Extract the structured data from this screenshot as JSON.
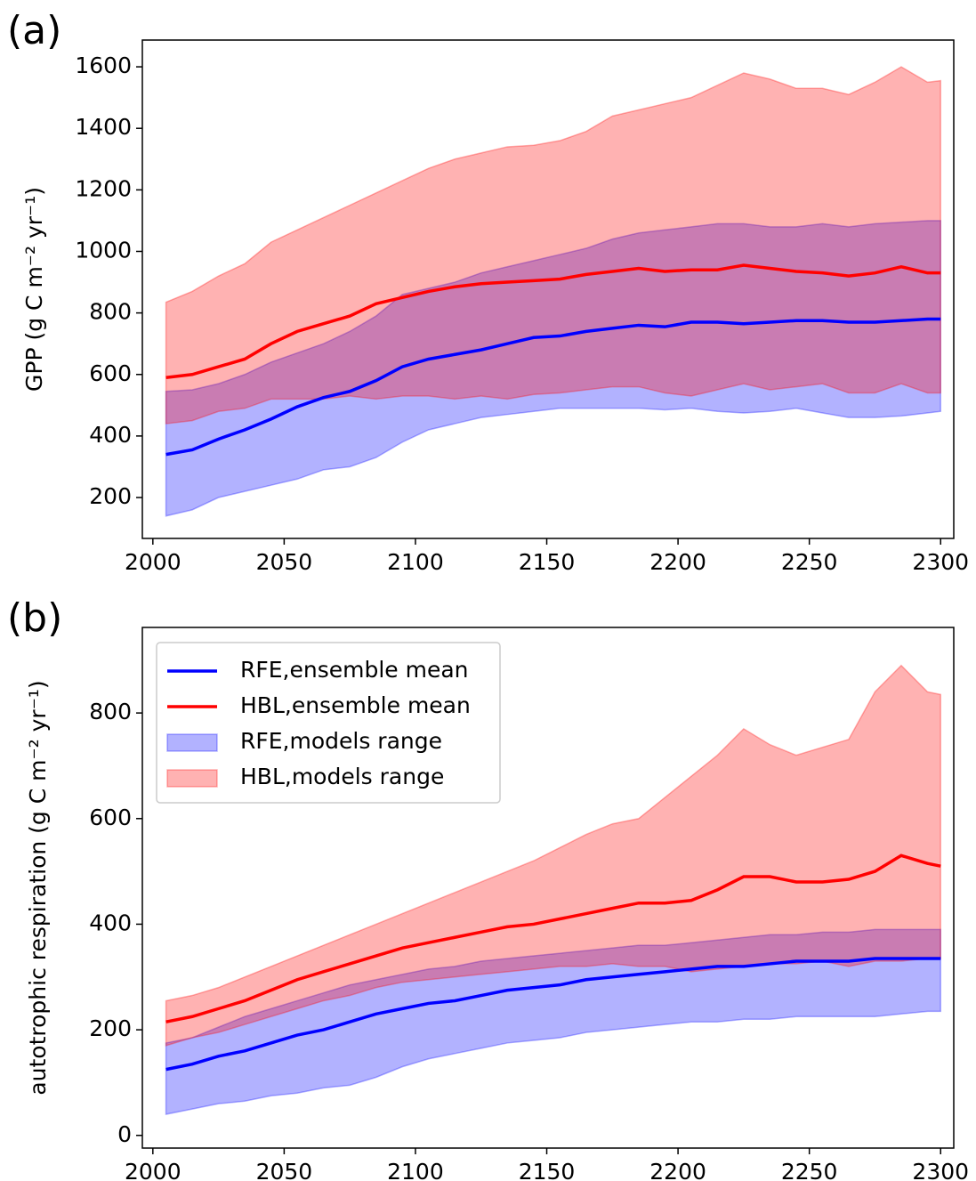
{
  "chart_data": [
    {
      "type": "line",
      "label": "(a)",
      "ylabel": "GPP (g C m⁻² yr⁻¹)",
      "x": [
        2005,
        2015,
        2025,
        2035,
        2045,
        2055,
        2065,
        2075,
        2085,
        2095,
        2105,
        2115,
        2125,
        2135,
        2145,
        2155,
        2165,
        2175,
        2185,
        2195,
        2205,
        2215,
        2225,
        2235,
        2245,
        2255,
        2265,
        2275,
        2285,
        2295,
        2300
      ],
      "xlim": [
        1996,
        2305
      ],
      "xticks": [
        2000,
        2050,
        2100,
        2150,
        2200,
        2250,
        2300
      ],
      "ylim": [
        67,
        1687
      ],
      "yticks": [
        200,
        400,
        600,
        800,
        1000,
        1200,
        1400,
        1600
      ],
      "series": [
        {
          "color": "#0000ff",
          "values": [
            340,
            355,
            390,
            420,
            455,
            495,
            525,
            545,
            580,
            625,
            650,
            665,
            680,
            700,
            720,
            725,
            740,
            750,
            760,
            755,
            770,
            770,
            765,
            770,
            775,
            775,
            770,
            770,
            775,
            780,
            780
          ]
        },
        {
          "color": "#ff0000",
          "values": [
            590,
            600,
            625,
            650,
            700,
            740,
            765,
            790,
            830,
            850,
            870,
            885,
            895,
            900,
            905,
            910,
            925,
            935,
            945,
            935,
            940,
            940,
            955,
            945,
            935,
            930,
            920,
            930,
            950,
            930,
            930
          ]
        },
        {
          "color": "#0000ff",
          "lower": [
            140,
            160,
            200,
            220,
            240,
            260,
            290,
            300,
            330,
            380,
            420,
            440,
            460,
            470,
            480,
            490,
            490,
            490,
            490,
            485,
            490,
            480,
            475,
            480,
            490,
            475,
            460,
            460,
            465,
            475,
            480
          ],
          "upper": [
            545,
            550,
            570,
            600,
            640,
            670,
            700,
            740,
            790,
            860,
            880,
            900,
            930,
            950,
            970,
            990,
            1010,
            1040,
            1060,
            1070,
            1080,
            1090,
            1090,
            1080,
            1080,
            1090,
            1080,
            1090,
            1095,
            1100,
            1100
          ]
        },
        {
          "color": "#ff0000",
          "lower": [
            440,
            450,
            480,
            490,
            520,
            520,
            520,
            530,
            520,
            530,
            530,
            520,
            530,
            520,
            535,
            540,
            550,
            560,
            560,
            540,
            530,
            550,
            570,
            550,
            560,
            570,
            540,
            540,
            570,
            540,
            540
          ],
          "upper": [
            835,
            870,
            920,
            960,
            1030,
            1070,
            1110,
            1150,
            1190,
            1230,
            1270,
            1300,
            1320,
            1340,
            1345,
            1360,
            1390,
            1440,
            1460,
            1480,
            1500,
            1540,
            1580,
            1560,
            1530,
            1530,
            1510,
            1550,
            1600,
            1550,
            1555
          ]
        }
      ]
    },
    {
      "type": "line",
      "label": "(b)",
      "ylabel": "autotrophic respiration (g C m⁻² yr⁻¹)",
      "legend": "upper left",
      "x": [
        2005,
        2015,
        2025,
        2035,
        2045,
        2055,
        2065,
        2075,
        2085,
        2095,
        2105,
        2115,
        2125,
        2135,
        2145,
        2155,
        2165,
        2175,
        2185,
        2195,
        2205,
        2215,
        2225,
        2235,
        2245,
        2255,
        2265,
        2275,
        2285,
        2295,
        2300
      ],
      "xlim": [
        1996,
        2305
      ],
      "xticks": [
        2000,
        2050,
        2100,
        2150,
        2200,
        2250,
        2300
      ],
      "ylim": [
        -24,
        962
      ],
      "yticks": [
        0,
        200,
        400,
        600,
        800
      ],
      "series": [
        {
          "name": "RFE,ensemble mean",
          "color": "#0000ff",
          "values": [
            125,
            135,
            150,
            160,
            175,
            190,
            200,
            215,
            230,
            240,
            250,
            255,
            265,
            275,
            280,
            285,
            295,
            300,
            305,
            310,
            315,
            320,
            320,
            325,
            330,
            330,
            330,
            335,
            335,
            335,
            335
          ]
        },
        {
          "name": "HBL,ensemble mean",
          "color": "#ff0000",
          "values": [
            215,
            225,
            240,
            255,
            275,
            295,
            310,
            325,
            340,
            355,
            365,
            375,
            385,
            395,
            400,
            410,
            420,
            430,
            440,
            440,
            445,
            465,
            490,
            490,
            480,
            480,
            485,
            500,
            530,
            515,
            510
          ]
        },
        {
          "name": "RFE,models range",
          "color": "#0000ff",
          "lower": [
            40,
            50,
            60,
            65,
            75,
            80,
            90,
            95,
            110,
            130,
            145,
            155,
            165,
            175,
            180,
            185,
            195,
            200,
            205,
            210,
            215,
            215,
            220,
            220,
            225,
            225,
            225,
            225,
            230,
            235,
            235
          ],
          "upper": [
            175,
            185,
            205,
            225,
            240,
            255,
            270,
            285,
            295,
            305,
            315,
            320,
            330,
            335,
            340,
            345,
            350,
            355,
            360,
            360,
            365,
            370,
            375,
            380,
            380,
            385,
            385,
            390,
            390,
            390,
            390
          ]
        },
        {
          "name": "HBL,models range",
          "color": "#ff0000",
          "lower": [
            170,
            185,
            195,
            210,
            225,
            240,
            255,
            265,
            280,
            290,
            295,
            300,
            305,
            310,
            315,
            320,
            320,
            325,
            320,
            320,
            310,
            315,
            320,
            325,
            325,
            330,
            320,
            330,
            330,
            335,
            335
          ],
          "upper": [
            255,
            265,
            280,
            300,
            320,
            340,
            360,
            380,
            400,
            420,
            440,
            460,
            480,
            500,
            520,
            545,
            570,
            590,
            600,
            640,
            680,
            720,
            770,
            740,
            720,
            735,
            750,
            840,
            890,
            840,
            835
          ]
        }
      ]
    }
  ]
}
